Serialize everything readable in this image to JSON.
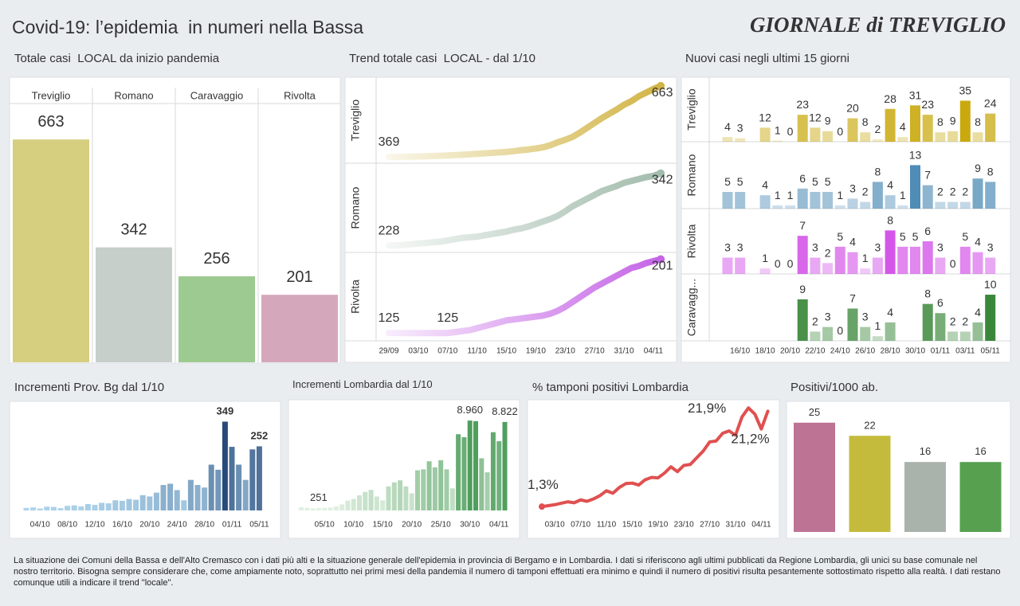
{
  "header": {
    "title": "Covid-19: l’epidemia  in numeri nella Bassa",
    "logo": "GIORNALE di TREVIGLIO"
  },
  "chart_data": [
    {
      "type": "bar",
      "title": "Totale casi  LOCAL da inizio pandemia",
      "categories": [
        "Treviglio",
        "Romano",
        "Caravaggio",
        "Rivolta"
      ],
      "values": [
        663,
        342,
        256,
        201
      ],
      "colors": [
        "#d5cf7f",
        "#c7cfca",
        "#9dca90",
        "#d5a7bb"
      ],
      "ylim": [
        0,
        770
      ]
    },
    {
      "type": "line",
      "title": "Trend totale casi  LOCAL - dal 1/10",
      "x": [
        "29/09",
        null,
        null,
        null,
        "03/10",
        null,
        null,
        null,
        "07/10",
        null,
        null,
        null,
        "11/10",
        null,
        null,
        null,
        "15/10",
        null,
        null,
        null,
        "19/10",
        null,
        null,
        null,
        "23/10",
        null,
        null,
        null,
        "27/10",
        null,
        null,
        null,
        "31/10",
        null,
        null,
        null,
        "04/11",
        null
      ],
      "series": [
        {
          "name": "Treviglio",
          "color": "#d2b547",
          "ylim": [
            343,
            699
          ],
          "values": [
            369,
            369,
            370,
            370,
            371,
            372,
            373,
            374,
            375,
            377,
            378,
            380,
            382,
            384,
            386,
            388,
            390,
            393,
            397,
            400,
            404,
            409,
            418,
            430,
            440,
            452,
            470,
            490,
            510,
            530,
            548,
            565,
            585,
            600,
            620,
            635,
            650,
            663
          ]
        },
        {
          "name": "Romano",
          "color": "#a3bcad",
          "ylim": [
            217,
            358
          ],
          "values": [
            228,
            228,
            229,
            230,
            231,
            232,
            233,
            234,
            236,
            238,
            240,
            241,
            242,
            244,
            246,
            248,
            250,
            253,
            255,
            258,
            262,
            266,
            270,
            275,
            282,
            290,
            296,
            302,
            308,
            314,
            318,
            322,
            327,
            330,
            333,
            336,
            338,
            342
          ]
        },
        {
          "name": "Rivolta",
          "color": "#c564e6",
          "ylim": [
            117,
            208
          ],
          "values": [
            125,
            125,
            125,
            125,
            125,
            125,
            125,
            125,
            125,
            126,
            127,
            128,
            130,
            132,
            134,
            136,
            138,
            139,
            140,
            141,
            142,
            143,
            145,
            148,
            152,
            157,
            162,
            167,
            172,
            176,
            180,
            184,
            188,
            192,
            194,
            197,
            199,
            201
          ]
        }
      ]
    },
    {
      "type": "bar",
      "title": "Nuovi casi negli ultimi 15 giorni",
      "x": [
        null,
        "16/10",
        null,
        "18/10",
        null,
        "20/10",
        null,
        "22/10",
        null,
        "24/10",
        null,
        "26/10",
        null,
        "28/10",
        null,
        "30/10",
        null,
        "01/11",
        null,
        "03/11",
        null,
        "05/11"
      ],
      "series": [
        {
          "name": "Treviglio",
          "color": "#c9a90e",
          "ylim": [
            0,
            55
          ],
          "values": [
            4,
            3,
            null,
            12,
            1,
            0,
            23,
            12,
            9,
            0,
            20,
            8,
            2,
            28,
            4,
            31,
            23,
            8,
            9,
            35,
            8,
            24
          ]
        },
        {
          "name": "Romano",
          "color": "#4f8cb6",
          "ylim": [
            0,
            20
          ],
          "values": [
            5,
            5,
            null,
            4,
            1,
            1,
            6,
            5,
            5,
            1,
            3,
            2,
            8,
            4,
            1,
            13,
            7,
            2,
            2,
            2,
            9,
            8
          ]
        },
        {
          "name": "Rivolta",
          "color": "#d456e8",
          "ylim": [
            0,
            12
          ],
          "values": [
            3,
            3,
            null,
            1,
            0,
            0,
            7,
            3,
            2,
            5,
            4,
            1,
            3,
            8,
            5,
            5,
            6,
            3,
            0,
            5,
            4,
            3
          ]
        },
        {
          "name": "Caravagg...",
          "color": "#3a873a",
          "ylim": [
            0,
            14.5
          ],
          "values": [
            null,
            null,
            null,
            null,
            null,
            null,
            9,
            2,
            3,
            0,
            7,
            3,
            1,
            4,
            null,
            null,
            8,
            6,
            2,
            2,
            4,
            10
          ]
        }
      ]
    },
    {
      "type": "bar",
      "title": "Incrementi Prov. Bg dal 1/10",
      "x": [
        null,
        null,
        "04/10",
        null,
        null,
        null,
        "08/10",
        null,
        null,
        null,
        "12/10",
        null,
        null,
        null,
        "16/10",
        null,
        null,
        null,
        "20/10",
        null,
        null,
        null,
        "24/10",
        null,
        null,
        null,
        "28/10",
        null,
        null,
        null,
        "01/11",
        null,
        null,
        null,
        "05/11"
      ],
      "values": [
        10,
        12,
        8,
        15,
        14,
        9,
        18,
        20,
        16,
        25,
        22,
        30,
        28,
        40,
        38,
        45,
        42,
        60,
        55,
        70,
        100,
        105,
        80,
        40,
        120,
        100,
        90,
        180,
        160,
        349,
        250,
        180,
        120,
        240,
        252
      ],
      "color_range": [
        "#b3d8ee",
        "#284a7a"
      ],
      "ylim": [
        0,
        410
      ]
    },
    {
      "type": "bar",
      "title": "Incrementi Lombardia dal 1/10",
      "x": [
        null,
        null,
        null,
        null,
        "05/10",
        null,
        null,
        null,
        null,
        "10/10",
        null,
        null,
        null,
        null,
        "15/10",
        null,
        null,
        null,
        null,
        "20/10",
        null,
        null,
        null,
        null,
        "25/10",
        null,
        null,
        null,
        null,
        "30/10",
        null,
        null,
        null,
        null,
        "04/11",
        null
      ],
      "values": [
        320,
        280,
        210,
        251,
        260,
        300,
        400,
        600,
        980,
        1150,
        1500,
        1850,
        2050,
        1390,
        1000,
        2400,
        2800,
        3000,
        2400,
        1700,
        4000,
        4100,
        4900,
        4300,
        5000,
        4100,
        2200,
        7600,
        7300,
        8960,
        8900,
        5200,
        3800,
        7800,
        6900,
        8822
      ],
      "value_labels": [
        null,
        null,
        null,
        "251",
        null,
        null,
        null,
        null,
        null,
        null,
        null,
        null,
        null,
        null,
        null,
        null,
        null,
        null,
        null,
        null,
        null,
        null,
        null,
        null,
        null,
        null,
        null,
        null,
        null,
        "8.960",
        null,
        null,
        null,
        null,
        null,
        "8.822"
      ],
      "color_range": [
        "#e6f2e6",
        "#4e9e5c"
      ],
      "ylim": [
        0,
        10400
      ]
    },
    {
      "type": "line",
      "title": "% tamponi positivi Lombardia",
      "x": [
        null,
        null,
        "03/10",
        null,
        null,
        null,
        "07/10",
        null,
        null,
        null,
        "11/10",
        null,
        null,
        null,
        "15/10",
        null,
        null,
        null,
        "19/10",
        null,
        null,
        null,
        "23/10",
        null,
        null,
        null,
        "27/10",
        null,
        null,
        null,
        "31/10",
        null,
        null,
        null,
        "04/11",
        null
      ],
      "values": [
        1.3,
        1.5,
        1.7,
        2.0,
        2.3,
        2.1,
        2.7,
        2.4,
        2.9,
        3.6,
        4.6,
        4.1,
        5.3,
        6.1,
        6.2,
        5.8,
        6.9,
        7.4,
        7.3,
        8.3,
        9.6,
        8.6,
        9.9,
        10.1,
        11.5,
        12.9,
        14.8,
        15.0,
        16.6,
        17.1,
        16.2,
        20.0,
        21.9,
        20.6,
        17.5,
        21.2
      ],
      "value_labels": [
        "1,3%",
        null,
        null,
        null,
        null,
        null,
        null,
        null,
        null,
        null,
        null,
        null,
        null,
        null,
        null,
        null,
        null,
        null,
        null,
        null,
        null,
        null,
        null,
        null,
        null,
        null,
        null,
        null,
        null,
        null,
        null,
        null,
        "21,9%",
        null,
        null,
        "21,2%"
      ],
      "color": "#e05050",
      "ylim": [
        0,
        23.1
      ]
    },
    {
      "type": "bar",
      "title": "Positivi/1000 ab.",
      "values": [
        25,
        22,
        16,
        16
      ],
      "colors": [
        "#bd7393",
        "#c4bb3c",
        "#a9b2ab",
        "#56a04f"
      ],
      "ylim": [
        0,
        29.7
      ]
    }
  ],
  "footnote": "La situazione dei Comuni della Bassa e dell'Alto Cremasco con i dati più alti e la situazione generale dell'epidemia in provincia di Bergamo e in Lombardia.  I dati si riferiscono agli ultimi pubblicati da Regione Lombardia, gli unici su base comunale nel  nostro territorio.  Bisogna sempre considerare che, come ampiamente noto, soprattutto nei primi mesi della pandemia il numero di tamponi effettuati era minimo e quindi il numero di positivi risulta pesantemente sottostimato rispetto alla realtà. I dati restano comunque utili a indicare il trend \"locale\"."
}
